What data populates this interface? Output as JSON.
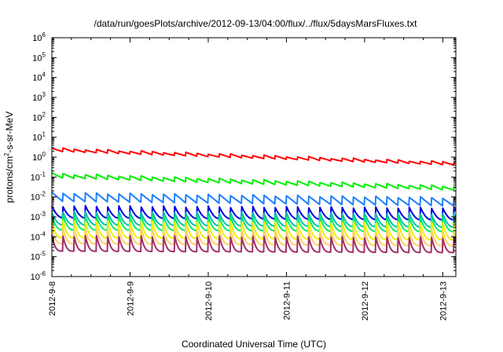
{
  "chart_data": {
    "type": "line",
    "title": "/data/run/goesPlots/archive/2012-09-13/04:00/flux/../flux/5daysMarsFluxes.txt",
    "xlabel": "Coordinated Universal Time (UTC)",
    "ylabel_prefix": "protons/cm",
    "ylabel_sup": "2",
    "ylabel_suffix": "-s-sr-MeV",
    "y_scale": "log",
    "ylim": [
      1e-06,
      1000000.0
    ],
    "y_ticks": [
      {
        "base": "10",
        "exp": "-6",
        "value": 1e-06
      },
      {
        "base": "10",
        "exp": "-5",
        "value": 1e-05
      },
      {
        "base": "10",
        "exp": "-4",
        "value": 0.0001
      },
      {
        "base": "10",
        "exp": "-3",
        "value": 0.001
      },
      {
        "base": "10",
        "exp": "-2",
        "value": 0.01
      },
      {
        "base": "10",
        "exp": "-1",
        "value": 0.1
      },
      {
        "base": "10",
        "exp": "0",
        "value": 1
      },
      {
        "base": "10",
        "exp": "1",
        "value": 10.0
      },
      {
        "base": "10",
        "exp": "2",
        "value": 100.0
      },
      {
        "base": "10",
        "exp": "3",
        "value": 1000.0
      },
      {
        "base": "10",
        "exp": "4",
        "value": 10000.0
      },
      {
        "base": "10",
        "exp": "5",
        "value": 100000.0
      },
      {
        "base": "10",
        "exp": "6",
        "value": 1000000.0
      }
    ],
    "xlim": [
      "2012-09-08T00:00",
      "2012-09-13T04:00"
    ],
    "x_ticks": [
      "2012-9-8",
      "2012-9-9",
      "2012-9-10",
      "2012-9-11",
      "2012-9-12",
      "2012-9-13"
    ],
    "grid": false,
    "cycles_per_day": 7,
    "series": [
      {
        "color": "#ff0000",
        "start_high": 2.8,
        "end_high": 0.55,
        "start_low": 1.9,
        "end_low": 0.38,
        "decay_shape": 1.0
      },
      {
        "color": "#00ee00",
        "start_high": 0.15,
        "end_high": 0.034,
        "start_low": 0.09,
        "end_low": 0.021,
        "decay_shape": 1.0
      },
      {
        "color": "#1e7fff",
        "start_high": 0.016,
        "end_high": 0.009,
        "start_low": 0.006,
        "end_low": 0.0035,
        "decay_shape": 1.0
      },
      {
        "color": "#0000dd",
        "start_high": 0.0035,
        "end_high": 0.0028,
        "start_low": 0.0009,
        "end_low": 0.0007,
        "decay_shape": 2.0
      },
      {
        "color": "#00c0b0",
        "start_high": 0.0018,
        "end_high": 0.0014,
        "start_low": 0.0004,
        "end_low": 0.0003,
        "decay_shape": 2.2
      },
      {
        "color": "#00ee66",
        "start_high": 0.0011,
        "end_high": 0.0009,
        "start_low": 0.00022,
        "end_low": 0.00018,
        "decay_shape": 2.4
      },
      {
        "color": "#eeee00",
        "start_high": 0.0006,
        "end_high": 0.0005,
        "start_low": 9e-05,
        "end_low": 7e-05,
        "decay_shape": 2.8
      },
      {
        "color": "#ffd060",
        "start_high": 0.00025,
        "end_high": 0.0002,
        "start_low": 4.5e-05,
        "end_low": 3.5e-05,
        "decay_shape": 3.0
      },
      {
        "color": "#a0306a",
        "start_high": 0.00011,
        "end_high": 9e-05,
        "start_low": 1.9e-05,
        "end_low": 1.6e-05,
        "decay_shape": 3.4
      }
    ]
  }
}
